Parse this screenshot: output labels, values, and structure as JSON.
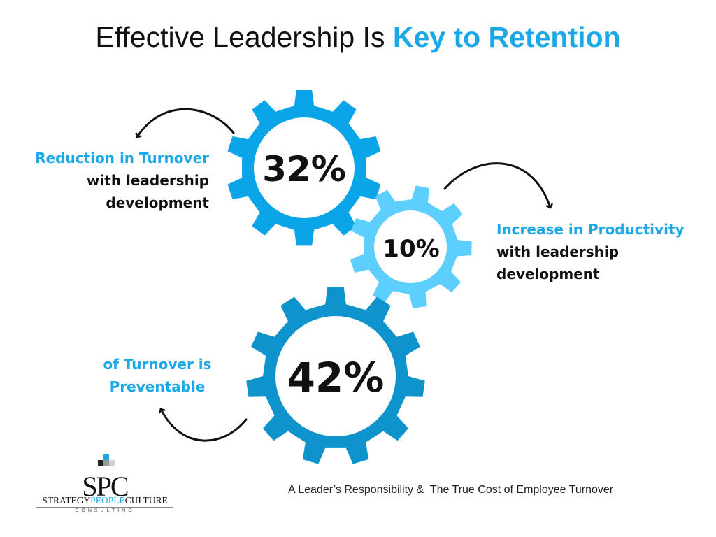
{
  "title": {
    "lead": "Effective Leadership Is ",
    "accent": "Key to Retention"
  },
  "colors": {
    "accent": "#1aa8e8",
    "gear_top": "#0aa5e9",
    "gear_mid": "#5ccfff",
    "gear_bottom": "#0f93cc"
  },
  "stats": [
    {
      "value": "32%",
      "highlight": "Reduction in Turnover",
      "rest": [
        "with leadership",
        "development"
      ]
    },
    {
      "value": "10%",
      "highlight": "Increase in Productivity",
      "rest": [
        "with leadership",
        "development"
      ]
    },
    {
      "value": "42%",
      "highlight": [
        "of Turnover is",
        "Preventable"
      ]
    }
  ],
  "footer": "A Leader’s Responsibility &  The True Cost of Employee Turnover",
  "logo": {
    "mark": "SPC",
    "name_left": "STRATEGY",
    "name_mid": "PEOPLE",
    "name_right": "CULTURE",
    "sub": "CONSULTING"
  }
}
